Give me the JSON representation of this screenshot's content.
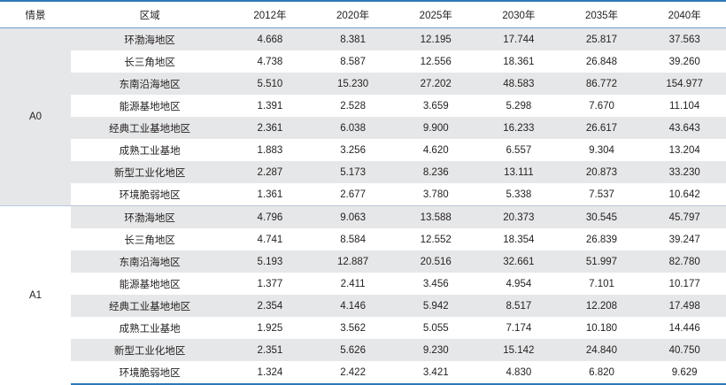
{
  "table": {
    "headers": [
      "情景",
      "区域",
      "2012年",
      "2020年",
      "2025年",
      "2030年",
      "2035年",
      "2040年"
    ],
    "groups": [
      {
        "scenario": "A0",
        "rows": [
          {
            "region": "环渤海地区",
            "values": [
              "4.668",
              "8.381",
              "12.195",
              "17.744",
              "25.817",
              "37.563"
            ]
          },
          {
            "region": "长三角地区",
            "values": [
              "4.738",
              "8.587",
              "12.556",
              "18.361",
              "26.848",
              "39.260"
            ]
          },
          {
            "region": "东南沿海地区",
            "values": [
              "5.510",
              "15.230",
              "27.202",
              "48.583",
              "86.772",
              "154.977"
            ]
          },
          {
            "region": "能源基地地区",
            "values": [
              "1.391",
              "2.528",
              "3.659",
              "5.298",
              "7.670",
              "11.104"
            ]
          },
          {
            "region": "经典工业基地地区",
            "values": [
              "2.361",
              "6.038",
              "9.900",
              "16.233",
              "26.617",
              "43.643"
            ]
          },
          {
            "region": "成熟工业基地",
            "values": [
              "1.883",
              "3.256",
              "4.620",
              "6.557",
              "9.304",
              "13.204"
            ]
          },
          {
            "region": "新型工业化地区",
            "values": [
              "2.287",
              "5.173",
              "8.236",
              "13.111",
              "20.873",
              "33.230"
            ]
          },
          {
            "region": "环境脆弱地区",
            "values": [
              "1.361",
              "2.677",
              "3.780",
              "5.338",
              "7.537",
              "10.642"
            ]
          }
        ]
      },
      {
        "scenario": "A1",
        "rows": [
          {
            "region": "环渤海地区",
            "values": [
              "4.796",
              "9.063",
              "13.588",
              "20.373",
              "30.545",
              "45.797"
            ]
          },
          {
            "region": "长三角地区",
            "values": [
              "4.741",
              "8.584",
              "12.552",
              "18.354",
              "26.839",
              "39.247"
            ]
          },
          {
            "region": "东南沿海地区",
            "values": [
              "5.193",
              "12.887",
              "20.516",
              "32.661",
              "51.997",
              "82.780"
            ]
          },
          {
            "region": "能源基地地区",
            "values": [
              "1.377",
              "2.411",
              "3.456",
              "4.954",
              "7.101",
              "10.177"
            ]
          },
          {
            "region": "经典工业基地地区",
            "values": [
              "2.354",
              "4.146",
              "5.942",
              "8.517",
              "12.208",
              "17.498"
            ]
          },
          {
            "region": "成熟工业基地",
            "values": [
              "1.925",
              "3.562",
              "5.055",
              "7.174",
              "10.180",
              "14.446"
            ]
          },
          {
            "region": "新型工业化地区",
            "values": [
              "2.351",
              "5.626",
              "9.230",
              "15.142",
              "24.840",
              "40.750"
            ]
          },
          {
            "region": "环境脆弱地区",
            "values": [
              "1.324",
              "2.422",
              "3.421",
              "4.830",
              "6.820",
              "9.629"
            ]
          }
        ]
      }
    ],
    "colors": {
      "rule": "#2f78b7",
      "shade": "#e6e7e8",
      "text": "#231f20"
    }
  }
}
